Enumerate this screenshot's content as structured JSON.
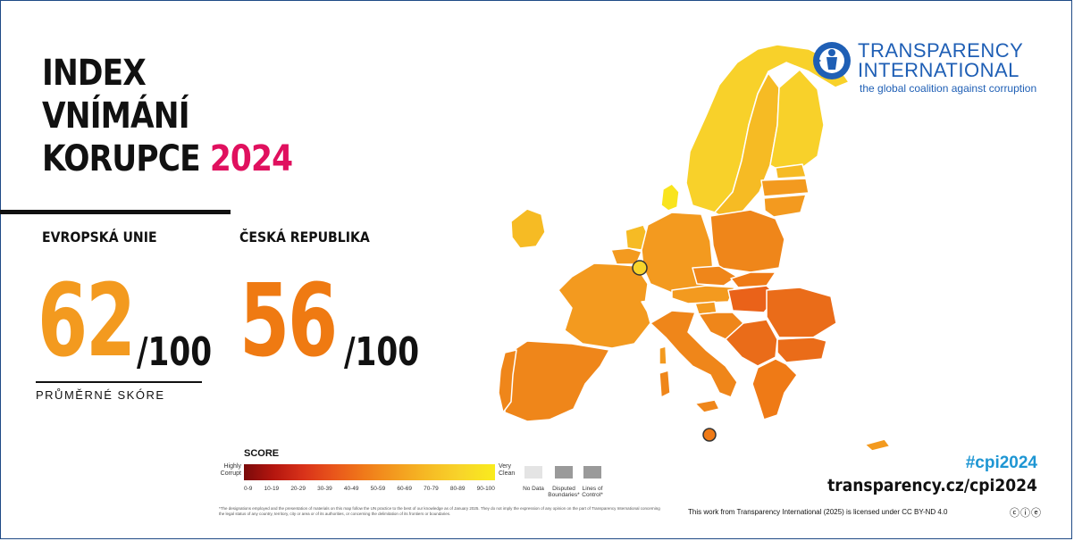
{
  "title": {
    "line1": "INDEX",
    "line2": "VNÍMÁNÍ",
    "line3": "KORUPCE",
    "year": "2024"
  },
  "eu": {
    "label": "EVROPSKÁ UNIE",
    "score": "62",
    "max": "/100",
    "caption": "PRŮMĚRNÉ  SKÓRE"
  },
  "cz": {
    "label": "ČESKÁ REPUBLIKA",
    "score": "56",
    "max": "/100"
  },
  "logo": {
    "name_line1": "TRANSPARENCY",
    "name_line2": "INTERNATIONAL",
    "tagline": "the global coalition against corruption",
    "icon": "transparency-international-logo-icon"
  },
  "legend": {
    "title": "SCORE",
    "low_label": "Highly Corrupt",
    "high_label": "Very Clean",
    "ticks": [
      "0-9",
      "10-19",
      "20-29",
      "30-39",
      "40-49",
      "50-59",
      "60-69",
      "70-79",
      "80-89",
      "90-100"
    ],
    "no_data": "No Data",
    "disputed": "Disputed Boundaries*",
    "lines_of_control": "Lines of Control*"
  },
  "disclaimer": "*The designations employed and the presentation of materials on this map follow the UN practice to the best of our knowledge as of January 2025. They do not imply the expression of any opinion on the part of Transparency International concerning the legal status of any country, territory, city or area or of its authorities, or concerning the delimitation of its frontiers or boundaries.",
  "hashtag": "#cpi2024",
  "url": "transparency.cz/cpi2024",
  "license": "This work from Transparency International (2025) is licensed under CC BY-ND 4.0",
  "cc_icons": "ⓒⓘⓔ",
  "colors": {
    "accent_year": "#e0105e",
    "eu_score": "#f39a1f",
    "cz_score": "#ef7a12",
    "brand_blue": "#1f5fb5",
    "hashtag": "#1e96d3"
  }
}
